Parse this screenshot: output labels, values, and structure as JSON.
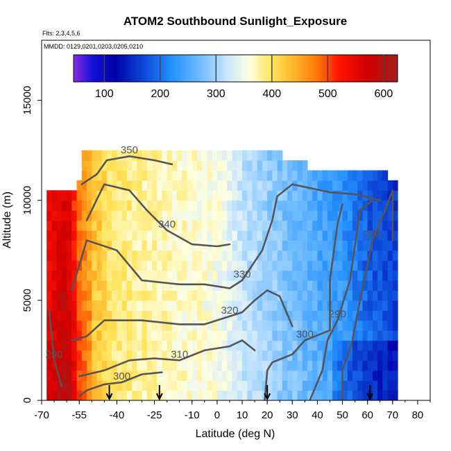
{
  "chart_data": {
    "type": "heatmap",
    "title": "ATOM2 Southbound Sunlight_Exposure",
    "subtitle_flights": "Flts: 2,3,4,5,6",
    "subtitle_dates": "MMDD: 0129,0201,0203,0205,0210",
    "xlabel": "Latitude (deg N)",
    "ylabel": "Altitude (m)",
    "xlim": [
      -70,
      85
    ],
    "ylim": [
      0,
      18000
    ],
    "x_ticks": [
      -70,
      -55,
      -40,
      -25,
      -10,
      0,
      10,
      20,
      30,
      40,
      50,
      60,
      70,
      80
    ],
    "y_ticks": [
      0,
      5000,
      10000,
      15000
    ],
    "colorbar": {
      "range": [
        45,
        625
      ],
      "ticks": [
        100,
        200,
        300,
        400,
        500,
        600
      ],
      "stops": [
        {
          "value": 45,
          "color": "#8a2be2"
        },
        {
          "value": 80,
          "color": "#1010d8"
        },
        {
          "value": 120,
          "color": "#0000a8"
        },
        {
          "value": 170,
          "color": "#0d47d8"
        },
        {
          "value": 220,
          "color": "#2490ff"
        },
        {
          "value": 270,
          "color": "#6cbaff"
        },
        {
          "value": 320,
          "color": "#c8e6ff"
        },
        {
          "value": 360,
          "color": "#ffffe0"
        },
        {
          "value": 400,
          "color": "#ffe45a"
        },
        {
          "value": 440,
          "color": "#ffb428"
        },
        {
          "value": 480,
          "color": "#ff7a0a"
        },
        {
          "value": 520,
          "color": "#ff1400"
        },
        {
          "value": 570,
          "color": "#d20000"
        },
        {
          "value": 625,
          "color": "#a01e1e"
        }
      ]
    },
    "arrows_lat": [
      -43,
      -23,
      20,
      61
    ],
    "fields": [
      {
        "name": "sunlight_exposure_profile",
        "lat": [
          -68,
          -60,
          -55,
          -50,
          -45,
          -40,
          -30,
          -20,
          -10,
          0,
          5,
          10,
          20,
          30,
          40,
          50,
          60,
          70
        ],
        "values": [
          520,
          560,
          470,
          430,
          410,
          390,
          380,
          370,
          365,
          355,
          340,
          320,
          300,
          280,
          260,
          240,
          200,
          180
        ]
      }
    ],
    "contours": [
      {
        "level": 280,
        "label": "280",
        "points": [
          [
            50,
            0
          ],
          [
            50,
            1500
          ],
          [
            54,
            3000
          ],
          [
            57,
            5000
          ],
          [
            62,
            8000
          ],
          [
            67,
            9500
          ],
          [
            70,
            10500
          ],
          [
            70,
            8000
          ]
        ]
      },
      {
        "level": 290,
        "label": "290",
        "points": [
          [
            37,
            0
          ],
          [
            42,
            1500
          ],
          [
            44,
            3000
          ],
          [
            48,
            4000
          ],
          [
            53,
            6000
          ],
          [
            57,
            9500
          ],
          [
            62,
            10000
          ]
        ]
      },
      {
        "level": 290,
        "label": "290",
        "points": [
          [
            -67,
            4500
          ],
          [
            -65,
            2000
          ],
          [
            -62,
            700
          ]
        ]
      },
      {
        "level": 300,
        "label": "300",
        "points": [
          [
            -55,
            200
          ],
          [
            -52,
            500
          ],
          [
            -45,
            800
          ],
          [
            -38,
            900
          ],
          [
            -30,
            1300
          ],
          [
            -22,
            1400
          ]
        ]
      },
      {
        "level": 300,
        "label": "300",
        "points": [
          [
            19,
            0
          ],
          [
            20,
            1500
          ],
          [
            22,
            1900
          ],
          [
            30,
            2300
          ],
          [
            35,
            3000
          ],
          [
            45,
            3500
          ],
          [
            45,
            6000
          ],
          [
            48,
            8800
          ],
          [
            50,
            9800
          ]
        ]
      },
      {
        "level": 310,
        "label": "310",
        "points": [
          [
            -55,
            1200
          ],
          [
            -45,
            1500
          ],
          [
            -35,
            2000
          ],
          [
            -25,
            2100
          ],
          [
            -15,
            2000
          ],
          [
            -5,
            2500
          ],
          [
            5,
            2700
          ],
          [
            10,
            3000
          ],
          [
            15,
            2500
          ]
        ]
      },
      {
        "level": 320,
        "label": "320",
        "points": [
          [
            -58,
            3000
          ],
          [
            -52,
            3200
          ],
          [
            -45,
            4000
          ],
          [
            -30,
            4000
          ],
          [
            -15,
            3800
          ],
          [
            -5,
            3800
          ],
          [
            5,
            4200
          ],
          [
            10,
            4400
          ],
          [
            15,
            5000
          ],
          [
            20,
            5500
          ],
          [
            25,
            5200
          ],
          [
            30,
            3700
          ]
        ]
      },
      {
        "level": 330,
        "label": "330",
        "points": [
          [
            -58,
            5500
          ],
          [
            -52,
            8000
          ],
          [
            -40,
            7500
          ],
          [
            -30,
            6000
          ],
          [
            -15,
            5800
          ],
          [
            -5,
            5800
          ],
          [
            5,
            5600
          ],
          [
            10,
            6000
          ],
          [
            18,
            7500
          ],
          [
            22,
            9000
          ],
          [
            24,
            10200
          ],
          [
            30,
            10800
          ],
          [
            45,
            10400
          ],
          [
            55,
            10300
          ],
          [
            65,
            10000
          ]
        ]
      },
      {
        "level": 340,
        "label": "340",
        "points": [
          [
            -52,
            9000
          ],
          [
            -45,
            10800
          ],
          [
            -35,
            10500
          ],
          [
            -28,
            9500
          ],
          [
            -20,
            8500
          ],
          [
            -10,
            7800
          ],
          [
            0,
            7700
          ],
          [
            5,
            7800
          ]
        ]
      },
      {
        "level": 350,
        "label": "350",
        "points": [
          [
            -54,
            10800
          ],
          [
            -48,
            11300
          ],
          [
            -44,
            12000
          ],
          [
            -35,
            12200
          ],
          [
            -25,
            12000
          ],
          [
            -18,
            11800
          ]
        ]
      }
    ]
  }
}
